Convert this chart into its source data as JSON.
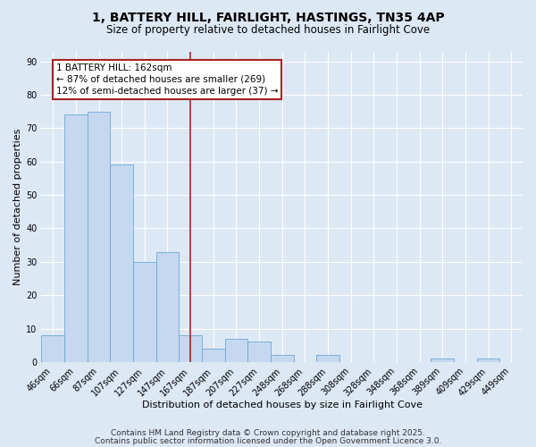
{
  "title1": "1, BATTERY HILL, FAIRLIGHT, HASTINGS, TN35 4AP",
  "title2": "Size of property relative to detached houses in Fairlight Cove",
  "xlabel": "Distribution of detached houses by size in Fairlight Cove",
  "ylabel": "Number of detached properties",
  "categories": [
    "46sqm",
    "66sqm",
    "87sqm",
    "107sqm",
    "127sqm",
    "147sqm",
    "167sqm",
    "187sqm",
    "207sqm",
    "227sqm",
    "248sqm",
    "268sqm",
    "288sqm",
    "308sqm",
    "328sqm",
    "348sqm",
    "368sqm",
    "389sqm",
    "409sqm",
    "429sqm",
    "449sqm"
  ],
  "values": [
    8,
    74,
    75,
    59,
    30,
    33,
    8,
    4,
    7,
    6,
    2,
    0,
    2,
    0,
    0,
    0,
    0,
    1,
    0,
    1,
    0
  ],
  "bar_color": "#c5d8f0",
  "bar_edge_color": "#6aaad4",
  "bar_width": 1.0,
  "vline_x": 6.0,
  "vline_color": "#aa2222",
  "annotation_text": "1 BATTERY HILL: 162sqm\n← 87% of detached houses are smaller (269)\n12% of semi-detached houses are larger (37) →",
  "annotation_box_color": "#ffffff",
  "annotation_box_edge": "#aa2222",
  "ylim": [
    0,
    93
  ],
  "yticks": [
    0,
    10,
    20,
    30,
    40,
    50,
    60,
    70,
    80,
    90
  ],
  "bg_color": "#dde8f5",
  "grid_color": "#ffffff",
  "footer1": "Contains HM Land Registry data © Crown copyright and database right 2025.",
  "footer2": "Contains public sector information licensed under the Open Government Licence 3.0.",
  "title1_fontsize": 10,
  "title2_fontsize": 8.5,
  "xlabel_fontsize": 8,
  "ylabel_fontsize": 8,
  "tick_fontsize": 7,
  "footer_fontsize": 6.5,
  "annot_fontsize": 7.5
}
